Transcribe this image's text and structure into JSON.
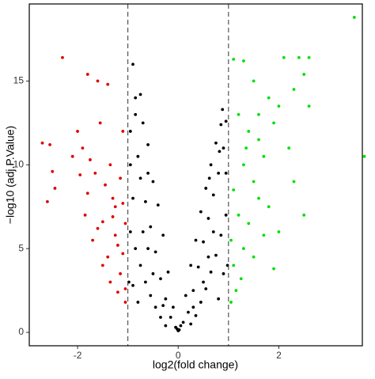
{
  "chart_data": {
    "type": "scatter",
    "x_label": "log2(fold change)",
    "y_label": "−log10 (adj.P.Value)",
    "xlim": [
      -2.96,
      3.66
    ],
    "ylim": [
      -0.8,
      19.6
    ],
    "xticks": [
      -2,
      0,
      2
    ],
    "yticks": [
      0,
      5,
      10,
      15
    ],
    "grid": false,
    "vlines": [
      -1,
      1
    ],
    "series": [
      {
        "color": "#e00000",
        "x": [
          -2.3,
          -1.8,
          -1.6,
          -1.4,
          -2.7,
          -2.55,
          -2.5,
          -2.45,
          -2.6,
          -2.0,
          -1.9,
          -1.75,
          -1.65,
          -1.55,
          -1.45,
          -1.35,
          -1.25,
          -1.15,
          -1.05,
          -1.1,
          -1.2,
          -1.3,
          -1.5,
          -1.7,
          -1.85,
          -1.95,
          -2.1,
          -1.4,
          -1.6,
          -1.8,
          -1.15,
          -1.05,
          -1.25,
          -1.35,
          -1.1,
          -1.5,
          -1.05,
          -1.2,
          -1.3,
          -1.1
        ],
        "values": [
          16.4,
          15.4,
          15.0,
          14.8,
          11.3,
          11.2,
          9.6,
          8.6,
          7.8,
          12.0,
          11.0,
          10.3,
          9.5,
          12.5,
          8.8,
          10.0,
          7.5,
          9.2,
          6.5,
          12.0,
          5.2,
          8.0,
          6.6,
          5.5,
          7.0,
          9.4,
          10.5,
          4.5,
          6.2,
          8.3,
          3.5,
          2.6,
          5.8,
          3.0,
          4.7,
          4.0,
          1.8,
          2.4,
          6.9,
          7.7
        ]
      },
      {
        "color": "#000000",
        "x": [
          -0.9,
          -0.85,
          -0.7,
          -0.6,
          -0.95,
          -0.8,
          -0.5,
          -0.4,
          -0.3,
          -0.2,
          -0.1,
          0.05,
          0.15,
          0.25,
          0.35,
          0.45,
          0.55,
          0.65,
          0.75,
          0.85,
          0.95,
          0.9,
          0.8,
          0.7,
          0.6,
          0.5,
          0.4,
          0.3,
          0.2,
          0.1,
          -0.05,
          -0.15,
          -0.25,
          -0.35,
          -0.45,
          -0.55,
          -0.65,
          -0.75,
          -0.9,
          -0.95,
          -0.85,
          -0.75,
          -0.65,
          -0.55,
          -0.45,
          -0.35,
          -0.25,
          0.25,
          0.35,
          0.45,
          0.55,
          0.65,
          0.75,
          0.85,
          0.95,
          0.95,
          0.9,
          0.8,
          -0.8,
          -0.9,
          -0.95,
          -0.6,
          0.6,
          0.7,
          -0.7,
          0.0,
          -0.02,
          0.02,
          -0.5,
          0.5,
          -0.85,
          0.88,
          -0.6,
          0.62,
          -0.98,
          0.98,
          -0.3,
          0.3,
          -0.75,
          0.82
        ],
        "values": [
          16.0,
          14.0,
          12.5,
          11.2,
          12.0,
          10.5,
          9.0,
          7.6,
          5.8,
          3.6,
          1.5,
          0.4,
          2.2,
          4.0,
          5.5,
          7.2,
          8.6,
          10.0,
          11.3,
          12.4,
          12.6,
          11.0,
          9.5,
          8.2,
          6.8,
          5.4,
          3.9,
          2.5,
          1.2,
          0.6,
          0.3,
          0.9,
          2.0,
          3.2,
          4.8,
          6.3,
          7.8,
          9.2,
          8.0,
          6.0,
          5.0,
          4.0,
          3.0,
          2.2,
          1.5,
          0.9,
          0.4,
          0.5,
          1.0,
          1.8,
          2.6,
          3.6,
          4.6,
          5.8,
          7.0,
          9.5,
          3.5,
          2.0,
          1.8,
          2.8,
          10.0,
          5.0,
          4.5,
          6.0,
          6.0,
          0.1,
          0.2,
          0.15,
          3.5,
          3.0,
          13.0,
          13.3,
          9.5,
          9.2,
          3.0,
          4.0,
          1.6,
          1.5,
          14.2,
          10.8
        ]
      },
      {
        "color": "#00e000",
        "x": [
          3.5,
          3.7,
          1.1,
          1.3,
          2.1,
          2.4,
          2.6,
          2.5,
          2.3,
          1.8,
          1.5,
          2.0,
          1.2,
          1.4,
          1.6,
          1.9,
          2.2,
          1.3,
          1.5,
          1.7,
          1.1,
          1.2,
          1.4,
          1.6,
          1.8,
          1.05,
          1.1,
          1.3,
          1.5,
          1.7,
          2.0,
          2.3,
          2.6,
          1.15,
          1.05,
          1.25,
          1.9,
          2.5,
          1.35,
          1.6
        ],
        "values": [
          18.8,
          10.5,
          16.3,
          16.2,
          16.4,
          16.4,
          16.4,
          15.4,
          14.5,
          14.0,
          15.0,
          13.5,
          13.0,
          12.0,
          11.5,
          12.5,
          11.0,
          10.0,
          9.0,
          10.5,
          8.5,
          7.0,
          6.5,
          8.0,
          7.5,
          5.5,
          4.0,
          5.0,
          4.5,
          5.8,
          6.0,
          9.0,
          13.5,
          2.5,
          1.8,
          3.2,
          3.8,
          7.0,
          11.0,
          13.0
        ]
      }
    ]
  }
}
